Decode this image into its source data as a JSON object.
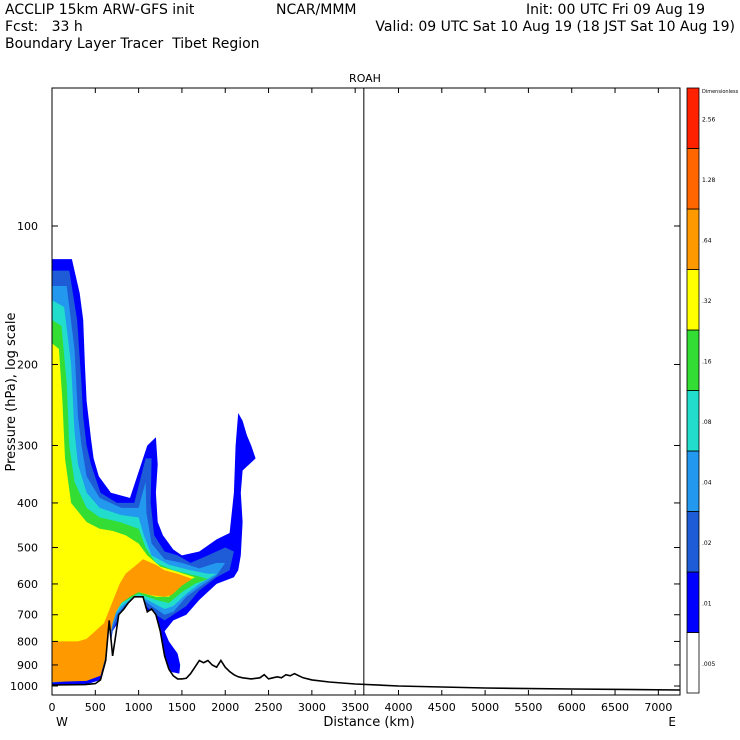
{
  "header": {
    "line1_left": "ACCLIP 15km ARW-GFS init",
    "line1_center": "NCAR/MMM",
    "line1_right": "Init: 00 UTC Fri 09 Aug 19",
    "line2_left": "Fcst:   33 h",
    "line2_right": "Valid: 09 UTC Sat 10 Aug 19 (18 JST Sat 10 Aug 19)",
    "line3_left": "Boundary Layer Tracer  Tibet Region"
  },
  "chart_data": {
    "type": "contour_cross_section",
    "title": "ROAH",
    "xlabel": "Distance (km)",
    "ylabel": "Pressure (hPa), log scale",
    "x_end_labels": {
      "left": "W",
      "right": "E"
    },
    "xlim": [
      0,
      7250
    ],
    "ylim": [
      1050,
      50
    ],
    "yscale": "log",
    "x_ticks": [
      0,
      500,
      1000,
      1500,
      2000,
      2500,
      3000,
      3500,
      4000,
      4500,
      5000,
      5500,
      6000,
      6500,
      7000
    ],
    "y_ticks": [
      100,
      200,
      300,
      400,
      500,
      600,
      700,
      800,
      900,
      1000
    ],
    "vertical_marker_x": 3600,
    "colorbar": {
      "label_top": "Dimensionless",
      "levels": [
        ".005",
        ".01",
        ".02",
        ".04",
        ".08",
        ".16",
        ".32",
        ".64",
        "1.28",
        "2.56"
      ],
      "colors": [
        "#ffffff",
        "#0000ff",
        "#1e5bd6",
        "#2299ee",
        "#22ddcc",
        "#33dd33",
        "#ffff00",
        "#ff9900",
        "#ff6600",
        "#ff2200"
      ]
    },
    "terrain": {
      "x": [
        0,
        380,
        500,
        560,
        620,
        660,
        700,
        730,
        770,
        830,
        880,
        950,
        1000,
        1050,
        1100,
        1150,
        1200,
        1250,
        1300,
        1350,
        1400,
        1450,
        1500,
        1550,
        1600,
        1650,
        1700,
        1750,
        1800,
        1850,
        1900,
        1950,
        2000,
        2050,
        2100,
        2150,
        2200,
        2300,
        2400,
        2450,
        2500,
        2550,
        2600,
        2650,
        2700,
        2750,
        2800,
        2850,
        2900,
        3000,
        3200,
        3500,
        4000,
        5000,
        6000,
        7250
      ],
      "y": [
        995,
        993,
        988,
        970,
        880,
        720,
        860,
        790,
        700,
        680,
        660,
        640,
        640,
        640,
        690,
        680,
        700,
        760,
        860,
        920,
        950,
        965,
        965,
        962,
        940,
        910,
        880,
        890,
        880,
        900,
        910,
        880,
        910,
        930,
        945,
        955,
        960,
        965,
        960,
        945,
        965,
        960,
        955,
        960,
        945,
        950,
        940,
        950,
        960,
        970,
        980,
        990,
        1000,
        1010,
        1015,
        1020
      ]
    },
    "tracer_bands": [
      {
        "level": ".01",
        "color": "#0000ff",
        "outline": [
          [
            0,
            118
          ],
          [
            230,
            118
          ],
          [
            260,
            125
          ],
          [
            320,
            140
          ],
          [
            360,
            160
          ],
          [
            380,
            200
          ],
          [
            400,
            240
          ],
          [
            450,
            290
          ],
          [
            480,
            320
          ],
          [
            540,
            350
          ],
          [
            680,
            380
          ],
          [
            900,
            390
          ],
          [
            1100,
            300
          ],
          [
            1200,
            288
          ],
          [
            1220,
            330
          ],
          [
            1200,
            380
          ],
          [
            1220,
            440
          ],
          [
            1280,
            470
          ],
          [
            1400,
            505
          ],
          [
            1500,
            520
          ],
          [
            1700,
            510
          ],
          [
            1900,
            480
          ],
          [
            2050,
            465
          ],
          [
            2100,
            380
          ],
          [
            2120,
            300
          ],
          [
            2150,
            255
          ],
          [
            2200,
            265
          ],
          [
            2250,
            285
          ],
          [
            2300,
            300
          ],
          [
            2350,
            320
          ],
          [
            2200,
            340
          ],
          [
            2180,
            380
          ],
          [
            2200,
            440
          ],
          [
            2180,
            520
          ],
          [
            2150,
            560
          ],
          [
            2100,
            580
          ],
          [
            1900,
            600
          ],
          [
            1700,
            650
          ],
          [
            1550,
            700
          ],
          [
            1400,
            720
          ],
          [
            1300,
            760
          ],
          [
            1350,
            800
          ],
          [
            1450,
            850
          ],
          [
            1480,
            900
          ],
          [
            1470,
            940
          ],
          [
            1350,
            930
          ],
          [
            1250,
            820
          ],
          [
            1200,
            760
          ],
          [
            1000,
            660
          ],
          [
            880,
            680
          ],
          [
            800,
            710
          ],
          [
            700,
            760
          ],
          [
            650,
            880
          ],
          [
            560,
            970
          ],
          [
            400,
            992
          ],
          [
            0,
            997
          ]
        ]
      },
      {
        "level": ".02",
        "color": "#1e5bd6",
        "outline": [
          [
            0,
            125
          ],
          [
            200,
            125
          ],
          [
            290,
            160
          ],
          [
            340,
            220
          ],
          [
            360,
            260
          ],
          [
            400,
            300
          ],
          [
            450,
            330
          ],
          [
            560,
            380
          ],
          [
            750,
            400
          ],
          [
            950,
            400
          ],
          [
            1080,
            320
          ],
          [
            1150,
            320
          ],
          [
            1140,
            400
          ],
          [
            1180,
            470
          ],
          [
            1300,
            510
          ],
          [
            1450,
            520
          ],
          [
            1600,
            540
          ],
          [
            1800,
            520
          ],
          [
            2000,
            500
          ],
          [
            2100,
            510
          ],
          [
            2050,
            560
          ],
          [
            1900,
            580
          ],
          [
            1700,
            620
          ],
          [
            1550,
            670
          ],
          [
            1400,
            700
          ],
          [
            1300,
            720
          ],
          [
            1200,
            700
          ],
          [
            1000,
            650
          ],
          [
            900,
            670
          ],
          [
            780,
            700
          ],
          [
            700,
            760
          ],
          [
            620,
            900
          ],
          [
            500,
            960
          ],
          [
            0,
            985
          ]
        ]
      },
      {
        "level": ".04",
        "color": "#2299ee",
        "outline": [
          [
            0,
            135
          ],
          [
            170,
            135
          ],
          [
            260,
            185
          ],
          [
            300,
            260
          ],
          [
            340,
            300
          ],
          [
            400,
            350
          ],
          [
            550,
            390
          ],
          [
            800,
            410
          ],
          [
            1000,
            410
          ],
          [
            1080,
            360
          ],
          [
            1090,
            420
          ],
          [
            1150,
            490
          ],
          [
            1300,
            530
          ],
          [
            1500,
            540
          ],
          [
            1700,
            555
          ],
          [
            1900,
            540
          ],
          [
            2000,
            540
          ],
          [
            1900,
            575
          ],
          [
            1700,
            610
          ],
          [
            1550,
            640
          ],
          [
            1400,
            690
          ],
          [
            1300,
            700
          ],
          [
            1150,
            670
          ],
          [
            1000,
            640
          ],
          [
            850,
            665
          ],
          [
            750,
            700
          ],
          [
            680,
            760
          ],
          [
            600,
            880
          ],
          [
            500,
            950
          ],
          [
            0,
            975
          ]
        ]
      },
      {
        "level": ".08",
        "color": "#22ddcc",
        "outline": [
          [
            0,
            145
          ],
          [
            140,
            150
          ],
          [
            220,
            200
          ],
          [
            260,
            280
          ],
          [
            300,
            330
          ],
          [
            400,
            380
          ],
          [
            550,
            410
          ],
          [
            800,
            425
          ],
          [
            1000,
            430
          ],
          [
            1060,
            470
          ],
          [
            1150,
            520
          ],
          [
            1350,
            545
          ],
          [
            1600,
            560
          ],
          [
            1800,
            570
          ],
          [
            1900,
            570
          ],
          [
            1700,
            600
          ],
          [
            1550,
            630
          ],
          [
            1400,
            670
          ],
          [
            1300,
            680
          ],
          [
            1100,
            650
          ],
          [
            950,
            640
          ],
          [
            800,
            670
          ],
          [
            700,
            710
          ],
          [
            640,
            780
          ],
          [
            580,
            870
          ],
          [
            450,
            940
          ],
          [
            0,
            960
          ]
        ]
      },
      {
        "level": ".16",
        "color": "#33dd33",
        "outline": [
          [
            0,
            160
          ],
          [
            110,
            165
          ],
          [
            170,
            220
          ],
          [
            200,
            300
          ],
          [
            260,
            360
          ],
          [
            400,
            410
          ],
          [
            550,
            430
          ],
          [
            780,
            440
          ],
          [
            1000,
            455
          ],
          [
            1080,
            500
          ],
          [
            1200,
            540
          ],
          [
            1400,
            560
          ],
          [
            1650,
            575
          ],
          [
            1800,
            585
          ],
          [
            1650,
            600
          ],
          [
            1500,
            625
          ],
          [
            1350,
            660
          ],
          [
            1200,
            650
          ],
          [
            1000,
            630
          ],
          [
            800,
            660
          ],
          [
            680,
            720
          ],
          [
            600,
            820
          ],
          [
            520,
            880
          ],
          [
            400,
            930
          ],
          [
            0,
            945
          ]
        ]
      },
      {
        "level": ".32",
        "color": "#ffff00",
        "outline": [
          [
            0,
            180
          ],
          [
            80,
            185
          ],
          [
            120,
            240
          ],
          [
            150,
            320
          ],
          [
            220,
            400
          ],
          [
            400,
            440
          ],
          [
            550,
            455
          ],
          [
            700,
            460
          ],
          [
            850,
            470
          ],
          [
            1000,
            490
          ],
          [
            1100,
            520
          ],
          [
            1250,
            550
          ],
          [
            1450,
            565
          ],
          [
            1650,
            580
          ],
          [
            1500,
            600
          ],
          [
            1350,
            640
          ],
          [
            1200,
            640
          ],
          [
            1000,
            625
          ],
          [
            800,
            640
          ],
          [
            700,
            680
          ],
          [
            620,
            760
          ],
          [
            540,
            830
          ],
          [
            420,
            880
          ],
          [
            0,
            900
          ]
        ]
      },
      {
        "level": ".64",
        "color": "#ff9900",
        "outline": [
          [
            0,
            800
          ],
          [
            300,
            800
          ],
          [
            400,
            790
          ],
          [
            600,
            730
          ],
          [
            780,
            600
          ],
          [
            850,
            570
          ],
          [
            950,
            550
          ],
          [
            1050,
            530
          ],
          [
            1200,
            545
          ],
          [
            1300,
            560
          ],
          [
            1450,
            570
          ],
          [
            1620,
            585
          ],
          [
            1500,
            605
          ],
          [
            1380,
            635
          ],
          [
            1300,
            640
          ],
          [
            1150,
            635
          ],
          [
            1000,
            625
          ],
          [
            900,
            640
          ],
          [
            800,
            660
          ],
          [
            740,
            690
          ],
          [
            700,
            730
          ],
          [
            650,
            820
          ],
          [
            560,
            950
          ],
          [
            400,
            975
          ],
          [
            0,
            980
          ]
        ]
      }
    ]
  }
}
